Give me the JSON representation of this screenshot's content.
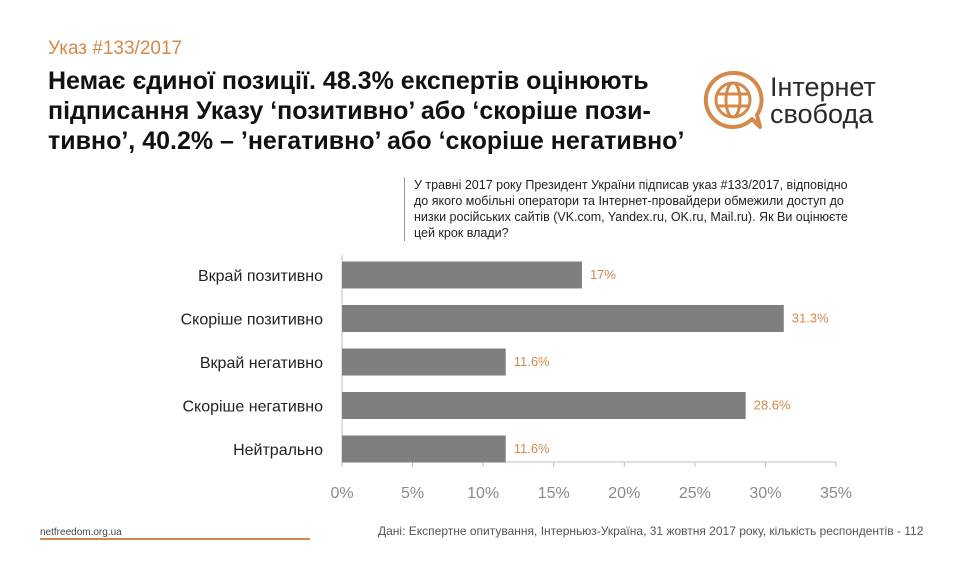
{
  "header": {
    "subtitle": "Указ #133/2017",
    "title": "Немає єдиної позиції. 48.3% експертів оцінюють підписання Указу ‘позитивно’ або ‘скоріше пози-тивно’, 40.2% – ’негативно’ або ‘скоріше негативно’"
  },
  "logo": {
    "line1": "Інтернет",
    "line2": "свобода",
    "icon": "globe-speech-bubble-icon",
    "accent_color": "#d4894a"
  },
  "question": "У травні 2017 року Президент України підписав указ #133/2017, відповідно\nдо якого мобільні оператори та Інтернет-провайдери обмежили доступ до\nнизки російських сайтів (VK.com, Yandex.ru, OK.ru, Mail.ru). Як Ви оцінюєте\nцей крок влади?",
  "chart_data": {
    "type": "bar",
    "orientation": "horizontal",
    "categories": [
      "Вкрай позитивно",
      "Скоріше позитивно",
      "Вкрай негативно",
      "Скоріше негативно",
      "Нейтрально"
    ],
    "values": [
      17,
      31.3,
      11.6,
      28.6,
      11.6
    ],
    "value_labels": [
      "17%",
      "31.3%",
      "11.6%",
      "28.6%",
      "11.6%"
    ],
    "xlim": [
      0,
      35
    ],
    "xticks": [
      0,
      5,
      10,
      15,
      20,
      25,
      30,
      35
    ],
    "xtick_labels": [
      "0%",
      "5%",
      "10%",
      "15%",
      "20%",
      "25%",
      "30%",
      "35%"
    ],
    "grid": false,
    "bar_color": "#7f7f7f",
    "label_color": "#d4894a"
  },
  "footer": {
    "site": "netfreedom.org.ua",
    "source": "Дані: Експертне опитування, Інтерньюз-Україна, 31 жовтня 2017 року, кількість респондентів - 112"
  }
}
